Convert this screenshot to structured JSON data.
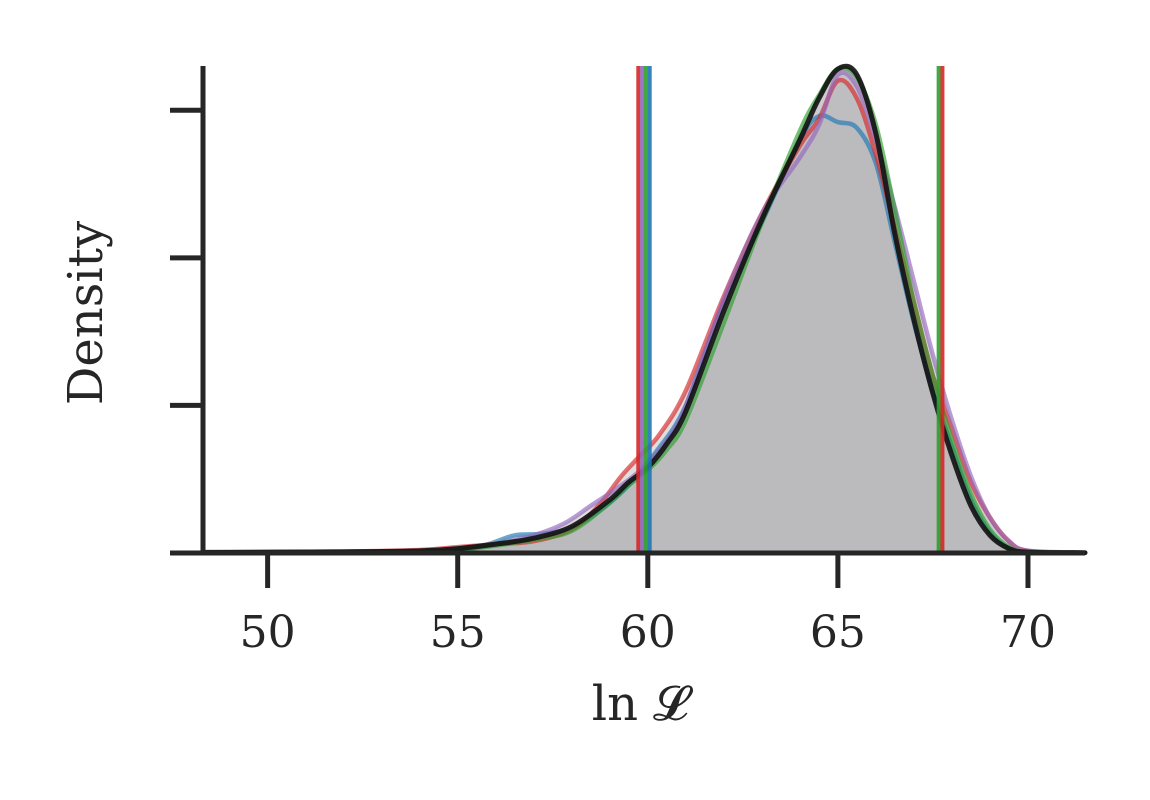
{
  "chart_data": {
    "type": "area",
    "title": "",
    "xlabel": "ln 𝓛",
    "ylabel": "Density",
    "xlim": [
      48.3,
      71.5
    ],
    "ylim": [
      0,
      0.165
    ],
    "xticks": [
      50,
      55,
      60,
      65,
      70
    ],
    "yticks": [
      0.05,
      0.1,
      0.15
    ],
    "show_ytick_labels": false,
    "grid": false,
    "legend": "none",
    "fill_color": "#b7b9ba",
    "series": [
      {
        "color": "#1f77b4",
        "x": [
          48.3,
          52,
          54,
          55,
          55.8,
          56.5,
          57.2,
          58,
          58.8,
          59.5,
          60.2,
          61,
          62,
          63,
          64,
          64.5,
          65,
          65.5,
          66,
          66.5,
          67,
          67.5,
          68,
          68.5,
          69,
          69.5,
          70,
          71.5
        ],
        "y": [
          0.0002,
          0.0004,
          0.0004,
          0.0008,
          0.003,
          0.006,
          0.0065,
          0.0085,
          0.015,
          0.023,
          0.034,
          0.05,
          0.085,
          0.112,
          0.14,
          0.148,
          0.146,
          0.144,
          0.132,
          0.105,
          0.078,
          0.055,
          0.036,
          0.018,
          0.007,
          0.0015,
          0.0003,
          0.0001
        ]
      },
      {
        "color": "#d62728",
        "x": [
          48.3,
          52,
          54,
          55,
          56,
          57,
          58,
          58.7,
          59.3,
          59.8,
          60.3,
          61,
          62,
          63,
          64,
          64.5,
          65,
          65.5,
          66,
          66.5,
          67,
          67.5,
          68,
          68.5,
          69,
          69.5,
          70,
          71.5
        ],
        "y": [
          0.0002,
          0.0005,
          0.001,
          0.002,
          0.003,
          0.004,
          0.008,
          0.016,
          0.026,
          0.033,
          0.04,
          0.055,
          0.087,
          0.115,
          0.138,
          0.147,
          0.16,
          0.154,
          0.135,
          0.11,
          0.085,
          0.06,
          0.042,
          0.024,
          0.012,
          0.004,
          0.0007,
          0.0001
        ]
      },
      {
        "color": "#9467bd",
        "x": [
          48.3,
          52,
          54,
          55,
          56,
          57,
          57.8,
          58.5,
          59.2,
          59.8,
          60.5,
          61,
          62,
          63,
          64,
          64.5,
          65,
          65.5,
          66,
          66.5,
          67,
          67.5,
          68,
          68.5,
          69,
          69.5,
          70,
          71.5
        ],
        "y": [
          0.0002,
          0.0004,
          0.0006,
          0.0012,
          0.003,
          0.006,
          0.01,
          0.016,
          0.022,
          0.028,
          0.038,
          0.05,
          0.086,
          0.115,
          0.134,
          0.145,
          0.162,
          0.158,
          0.14,
          0.117,
          0.092,
          0.067,
          0.045,
          0.026,
          0.012,
          0.004,
          0.0008,
          0.0001
        ]
      },
      {
        "color": "#2ca02c",
        "x": [
          48.3,
          52,
          54,
          55,
          56,
          57,
          58,
          59,
          59.5,
          60,
          60.5,
          61,
          62,
          63,
          64,
          64.5,
          65,
          65.5,
          66,
          66.5,
          67,
          67.5,
          68,
          68.5,
          69,
          69.5,
          70,
          71.5
        ],
        "y": [
          0.0002,
          0.0004,
          0.0006,
          0.001,
          0.0025,
          0.0045,
          0.0075,
          0.017,
          0.023,
          0.028,
          0.035,
          0.045,
          0.078,
          0.112,
          0.143,
          0.155,
          0.164,
          0.161,
          0.145,
          0.116,
          0.085,
          0.06,
          0.038,
          0.02,
          0.008,
          0.002,
          0.0004,
          0.0001
        ]
      },
      {
        "color": "#111111",
        "x": [
          48.3,
          52,
          54,
          55,
          56,
          57,
          58,
          59,
          59.5,
          60,
          60.5,
          61,
          62,
          63,
          64,
          64.5,
          65,
          65.5,
          66,
          66.5,
          67,
          67.5,
          68,
          68.5,
          69,
          69.5,
          70,
          71.5
        ],
        "y": [
          0.0002,
          0.0004,
          0.0007,
          0.0015,
          0.003,
          0.005,
          0.009,
          0.018,
          0.024,
          0.029,
          0.037,
          0.048,
          0.082,
          0.113,
          0.14,
          0.154,
          0.164,
          0.162,
          0.142,
          0.108,
          0.079,
          0.054,
          0.033,
          0.016,
          0.006,
          0.0015,
          0.0003,
          0.0001
        ]
      }
    ],
    "vertical_lines": [
      {
        "x": 59.75,
        "color": "#d62728"
      },
      {
        "x": 59.85,
        "color": "#9467bd"
      },
      {
        "x": 59.95,
        "color": "#2ca02c"
      },
      {
        "x": 60.05,
        "color": "#1f77b4"
      },
      {
        "x": 67.65,
        "color": "#2ca02c"
      },
      {
        "x": 67.75,
        "color": "#d62728"
      }
    ]
  }
}
